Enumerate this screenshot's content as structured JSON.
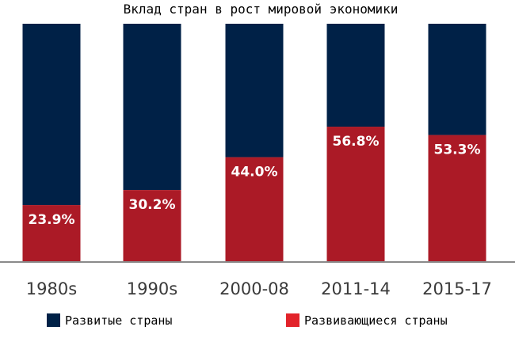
{
  "chart_data": {
    "type": "bar",
    "stacked": true,
    "percent": true,
    "title": "Вклад стран в рост мировой экономики",
    "categories": [
      "1980s",
      "1990s",
      "2000-08",
      "2011-14",
      "2015-17"
    ],
    "series": [
      {
        "name": "Развитые страны",
        "color": "#002147",
        "values": [
          76.1,
          69.8,
          56.0,
          43.2,
          46.7
        ]
      },
      {
        "name": "Развивающиеся страны",
        "color": "#ab1a26",
        "values": [
          23.9,
          30.2,
          44.0,
          56.8,
          53.3
        ]
      }
    ],
    "data_labels": [
      "23.9%",
      "30.2%",
      "44.0%",
      "56.8%",
      "53.3%"
    ],
    "ylim": [
      0,
      100
    ],
    "grid": false,
    "legend_position": "bottom",
    "legend_swatch_colors": [
      "#002147",
      "#e2232a"
    ],
    "axis_color": "#8a8a8a"
  }
}
